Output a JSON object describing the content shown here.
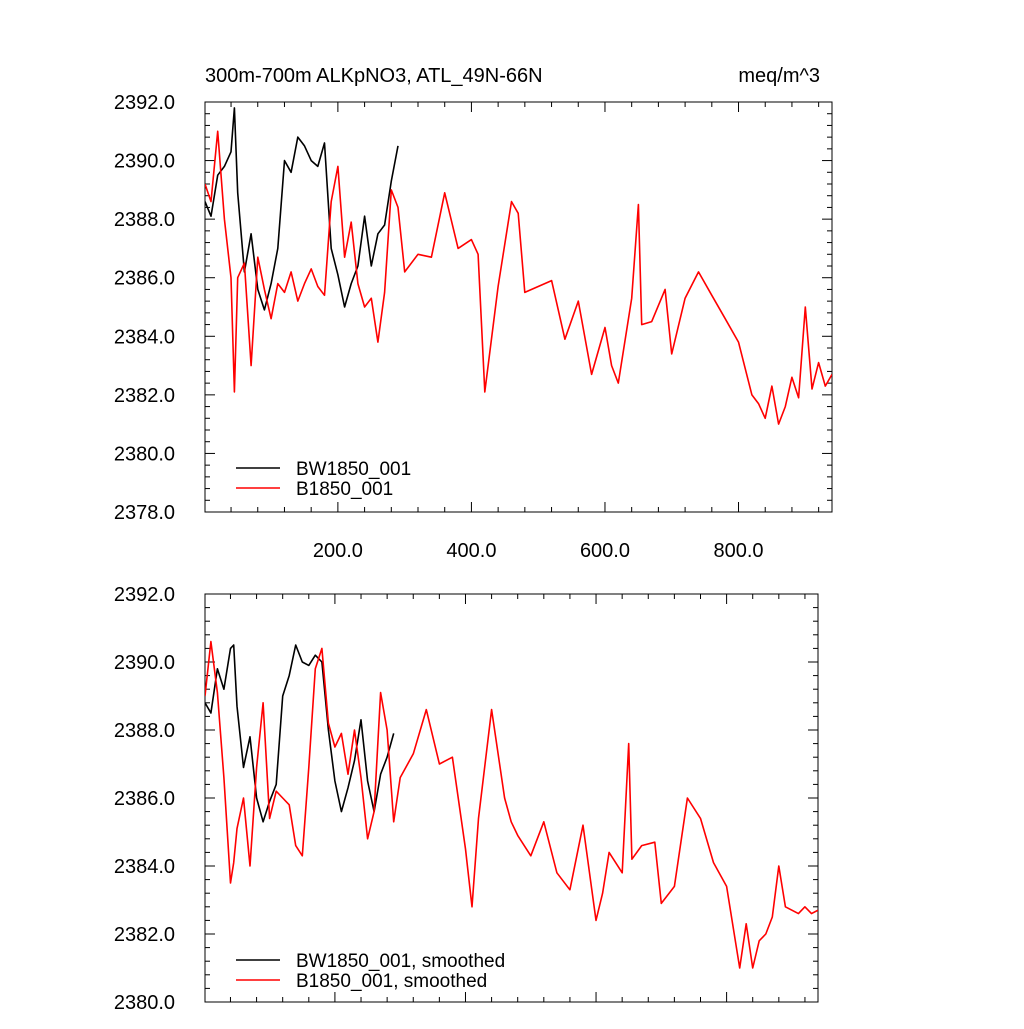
{
  "chart_data": [
    {
      "type": "line",
      "title": "300m-700m ALKpNO3, ATL_49N-66N",
      "units": "meq/m^3",
      "xlabel": "",
      "ylabel": "",
      "xlim": [
        1,
        940
      ],
      "ylim": [
        2378.0,
        2392.0
      ],
      "x_ticks": [
        200,
        400,
        600,
        800
      ],
      "x_tick_labels": [
        "200.0",
        "400.0",
        "600.0",
        "800.0"
      ],
      "y_ticks": [
        2378,
        2380,
        2382,
        2384,
        2386,
        2388,
        2390,
        2392
      ],
      "y_tick_labels": [
        "2378.0",
        "2380.0",
        "2382.0",
        "2384.0",
        "2386.0",
        "2388.0",
        "2390.0",
        "2392.0"
      ],
      "grid": false,
      "legend_position": "bottom-left",
      "series": [
        {
          "name": "BW1850_001",
          "color": "#000000",
          "x": [
            1,
            10,
            20,
            30,
            40,
            45,
            50,
            60,
            70,
            80,
            90,
            100,
            110,
            120,
            130,
            140,
            150,
            160,
            170,
            180,
            190,
            200,
            210,
            220,
            230,
            240,
            250,
            260,
            270,
            280,
            290
          ],
          "y": [
            2388.6,
            2388.1,
            2389.5,
            2389.8,
            2390.3,
            2391.8,
            2388.9,
            2386.2,
            2387.5,
            2385.6,
            2384.9,
            2385.8,
            2387.0,
            2390.0,
            2389.6,
            2390.8,
            2390.5,
            2390.0,
            2389.8,
            2390.6,
            2387.0,
            2386.1,
            2385.0,
            2385.8,
            2386.4,
            2388.1,
            2386.4,
            2387.5,
            2387.8,
            2389.3,
            2390.5
          ]
        },
        {
          "name": "B1850_001",
          "color": "#ff0000",
          "x": [
            1,
            10,
            20,
            30,
            40,
            45,
            50,
            60,
            70,
            80,
            90,
            100,
            110,
            120,
            130,
            140,
            150,
            160,
            170,
            180,
            190,
            200,
            210,
            220,
            230,
            240,
            250,
            260,
            270,
            280,
            290,
            300,
            320,
            340,
            360,
            380,
            400,
            410,
            420,
            440,
            460,
            470,
            480,
            500,
            520,
            540,
            560,
            580,
            600,
            610,
            620,
            640,
            650,
            655,
            670,
            690,
            700,
            720,
            740,
            760,
            780,
            800,
            820,
            830,
            840,
            850,
            860,
            870,
            880,
            890,
            900,
            910,
            920,
            930,
            940
          ],
          "y": [
            2389.2,
            2388.6,
            2391.0,
            2388.0,
            2386.0,
            2382.1,
            2386.0,
            2386.5,
            2383.0,
            2386.7,
            2385.6,
            2384.6,
            2385.8,
            2385.5,
            2386.2,
            2385.2,
            2385.8,
            2386.3,
            2385.7,
            2385.4,
            2388.6,
            2389.8,
            2386.7,
            2387.9,
            2385.8,
            2385.0,
            2385.3,
            2383.8,
            2385.5,
            2389.0,
            2388.4,
            2386.2,
            2386.8,
            2386.7,
            2388.9,
            2387.0,
            2387.3,
            2386.8,
            2382.1,
            2385.7,
            2388.6,
            2388.2,
            2385.5,
            2385.7,
            2385.9,
            2383.9,
            2385.2,
            2382.7,
            2384.3,
            2383.0,
            2382.4,
            2385.3,
            2388.5,
            2384.4,
            2384.5,
            2385.6,
            2383.4,
            2385.3,
            2386.2,
            2385.4,
            2384.6,
            2383.8,
            2382.0,
            2381.7,
            2381.2,
            2382.3,
            2381.0,
            2381.6,
            2382.6,
            2381.9,
            2385.0,
            2382.2,
            2383.1,
            2382.3,
            2382.7
          ]
        }
      ]
    },
    {
      "type": "line",
      "xlim": [
        1,
        940
      ],
      "ylim": [
        2380.0,
        2392.0
      ],
      "x_ticks": [
        200,
        400,
        600,
        800
      ],
      "y_ticks": [
        2380,
        2382,
        2384,
        2386,
        2388,
        2390,
        2392
      ],
      "y_tick_labels": [
        "2380.0",
        "2382.0",
        "2384.0",
        "2386.0",
        "2388.0",
        "2390.0",
        "2392.0"
      ],
      "grid": false,
      "legend_position": "bottom-left",
      "series": [
        {
          "name": "BW1850_001, smoothed",
          "color": "#000000",
          "x": [
            1,
            10,
            20,
            30,
            40,
            45,
            50,
            60,
            70,
            80,
            90,
            100,
            110,
            120,
            130,
            140,
            150,
            160,
            170,
            180,
            190,
            200,
            210,
            220,
            230,
            240,
            250,
            260,
            270,
            280,
            290
          ],
          "y": [
            2388.8,
            2388.5,
            2389.8,
            2389.2,
            2390.4,
            2390.5,
            2388.7,
            2386.9,
            2387.8,
            2386.0,
            2385.3,
            2385.9,
            2386.4,
            2389.0,
            2389.6,
            2390.5,
            2390.0,
            2389.9,
            2390.2,
            2390.0,
            2388.0,
            2386.5,
            2385.6,
            2386.3,
            2387.1,
            2388.3,
            2386.5,
            2385.6,
            2386.7,
            2387.2,
            2387.9
          ]
        },
        {
          "name": "B1850_001, smoothed",
          "color": "#ff0000",
          "x": [
            1,
            10,
            20,
            30,
            40,
            45,
            50,
            60,
            70,
            80,
            90,
            100,
            110,
            120,
            130,
            140,
            150,
            160,
            170,
            180,
            190,
            200,
            210,
            220,
            230,
            240,
            250,
            260,
            270,
            280,
            290,
            300,
            320,
            340,
            360,
            380,
            400,
            410,
            420,
            440,
            460,
            470,
            480,
            500,
            520,
            540,
            560,
            580,
            600,
            610,
            620,
            640,
            650,
            655,
            670,
            690,
            700,
            720,
            740,
            760,
            780,
            800,
            820,
            830,
            840,
            850,
            860,
            870,
            880,
            890,
            900,
            910,
            920,
            930,
            940
          ],
          "y": [
            2389.0,
            2390.6,
            2389.1,
            2386.6,
            2383.5,
            2384.1,
            2385.1,
            2386.0,
            2384.0,
            2386.9,
            2388.8,
            2385.4,
            2386.2,
            2386.0,
            2385.8,
            2384.6,
            2384.3,
            2386.9,
            2389.8,
            2390.4,
            2388.2,
            2387.5,
            2387.9,
            2386.7,
            2388.0,
            2386.6,
            2384.8,
            2385.6,
            2389.1,
            2388.0,
            2385.3,
            2386.6,
            2387.3,
            2388.6,
            2387.0,
            2387.2,
            2384.5,
            2382.8,
            2385.4,
            2388.6,
            2386.0,
            2385.3,
            2384.9,
            2384.3,
            2385.3,
            2383.8,
            2383.3,
            2385.2,
            2382.4,
            2383.2,
            2384.4,
            2383.8,
            2387.6,
            2384.2,
            2384.6,
            2384.7,
            2382.9,
            2383.4,
            2386.0,
            2385.4,
            2384.1,
            2383.4,
            2381.0,
            2382.3,
            2381.0,
            2381.8,
            2382.0,
            2382.5,
            2384.0,
            2382.8,
            2382.7,
            2382.6,
            2382.8,
            2382.6,
            2382.7
          ]
        }
      ]
    }
  ]
}
